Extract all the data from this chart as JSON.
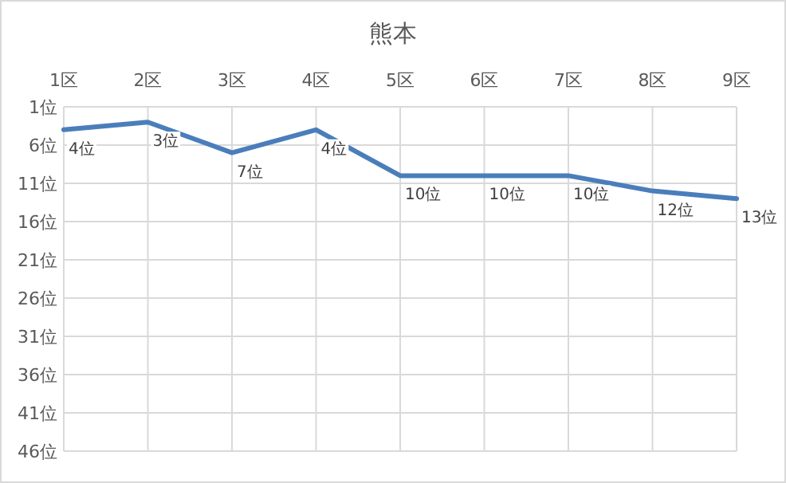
{
  "chart_data": {
    "type": "line",
    "title": "熊本",
    "categories": [
      "1区",
      "2区",
      "3区",
      "4区",
      "5区",
      "6区",
      "7区",
      "8区",
      "9区"
    ],
    "values": [
      4,
      3,
      7,
      4,
      10,
      10,
      10,
      12,
      13
    ],
    "value_labels": [
      "4位",
      "3位",
      "7位",
      "4位",
      "10位",
      "10位",
      "10位",
      "12位",
      "13位"
    ],
    "color": "#4a7ebb",
    "ylim": [
      46,
      1
    ],
    "yticks": [
      {
        "value": 1,
        "label": "1位"
      },
      {
        "value": 6,
        "label": "6位"
      },
      {
        "value": 11,
        "label": "11位"
      },
      {
        "value": 16,
        "label": "16位"
      },
      {
        "value": 21,
        "label": "21位"
      },
      {
        "value": 26,
        "label": "26位"
      },
      {
        "value": 31,
        "label": "31位"
      },
      {
        "value": 36,
        "label": "36位"
      },
      {
        "value": 41,
        "label": "41位"
      },
      {
        "value": 46,
        "label": "46位"
      }
    ],
    "grid": true,
    "marker": "none",
    "line_style": "solid"
  }
}
